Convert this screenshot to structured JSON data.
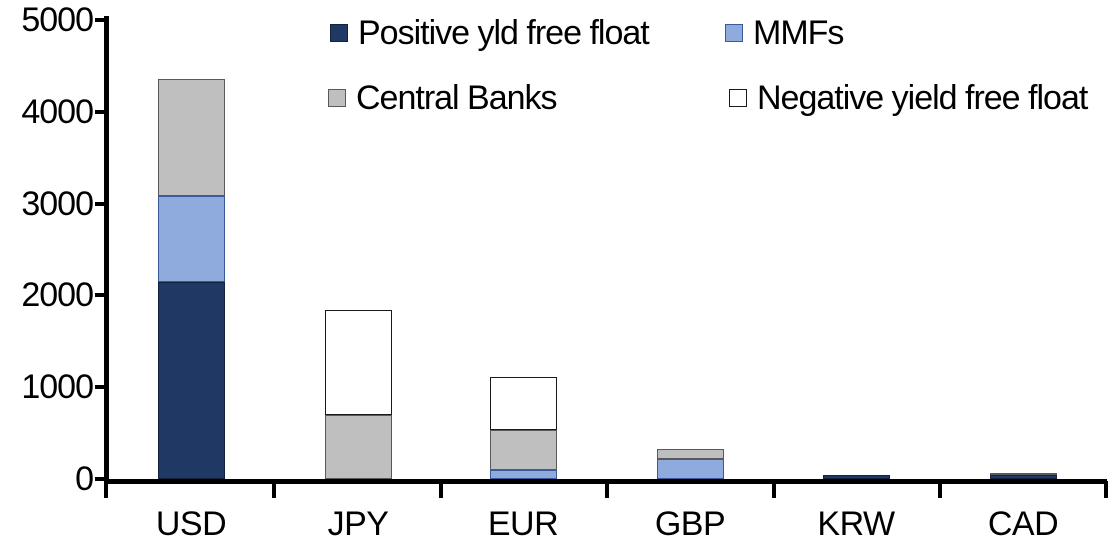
{
  "chart_data": {
    "type": "bar",
    "stacked": true,
    "title": "",
    "xlabel": "",
    "ylabel": "",
    "categories": [
      "USD",
      "JPY",
      "EUR",
      "GBP",
      "KRW",
      "CAD"
    ],
    "series": [
      {
        "name": "Positive yld free float",
        "color": "#1F3864",
        "border_color": "#14233C",
        "values": [
          2150,
          0,
          0,
          0,
          45,
          45
        ]
      },
      {
        "name": "MMFs",
        "color": "#8FAADC",
        "border_color": "#3A5A9B",
        "values": [
          930,
          0,
          100,
          220,
          0,
          0
        ]
      },
      {
        "name": "Central Banks",
        "color": "#BFBFBF",
        "border_color": "#595959",
        "values": [
          1280,
          700,
          435,
          110,
          0,
          25
        ]
      },
      {
        "name": "Negative yield free float",
        "color": "#FFFFFF",
        "border_color": "#1A1A1A",
        "values": [
          0,
          1140,
          575,
          0,
          0,
          0
        ]
      }
    ],
    "totals": [
      4360,
      1840,
      1110,
      330,
      45,
      70
    ],
    "ylim": [
      0,
      5000
    ],
    "yticks": [
      0,
      1000,
      2000,
      3000,
      4000,
      5000
    ],
    "grid": false,
    "legend_position": "top",
    "legend_rows": [
      [
        "Positive yld free float",
        "MMFs"
      ],
      [
        "Central Banks",
        "Negative yield free float"
      ]
    ],
    "axis_color": "#000000",
    "text_color": "#000000",
    "background_color": "#FFFFFF"
  }
}
